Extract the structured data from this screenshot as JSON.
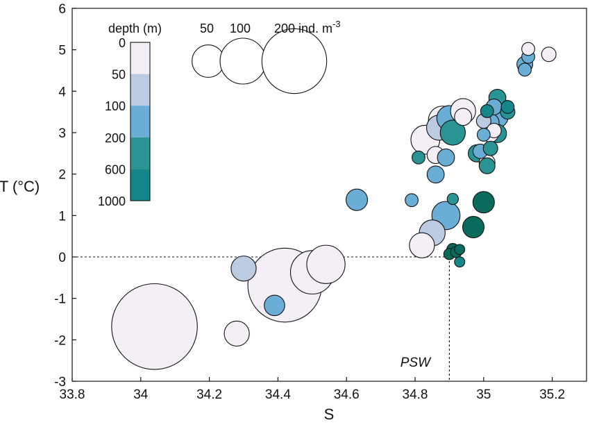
{
  "chart_data": {
    "type": "scatter",
    "title": "",
    "xlabel": "S",
    "ylabel": "T (°C)",
    "xlim": [
      33.8,
      35.3
    ],
    "ylim": [
      -3,
      6
    ],
    "x_ticks": [
      33.8,
      34,
      34.2,
      34.4,
      34.6,
      34.8,
      35,
      35.2
    ],
    "x_tick_labels": [
      "33.8",
      "34",
      "34.2",
      "34.4",
      "34.6",
      "34.8",
      "35",
      "35.2"
    ],
    "y_ticks": [
      -3,
      -2,
      -1,
      0,
      1,
      2,
      3,
      4,
      5,
      6
    ],
    "y_tick_labels": [
      "-3",
      "-2",
      "-1",
      "0",
      "1",
      "2",
      "3",
      "4",
      "5",
      "6"
    ],
    "grid": false,
    "depth_colorbar": {
      "title": "depth (m)",
      "levels": [
        "0",
        "50",
        "100",
        "200",
        "600",
        "1000"
      ],
      "colors": [
        "#f4eff6",
        "#bccbe2",
        "#6aaed6",
        "#2a9494",
        "#15868a",
        "#0a6b5c"
      ]
    },
    "size_legend": {
      "labels": [
        "50",
        "100",
        "200 ind. m"
      ],
      "label_superscript": "-3",
      "values": [
        50,
        100,
        200
      ]
    },
    "reference_point": {
      "label": "PSW",
      "x": 34.9,
      "y": 0
    },
    "points": [
      {
        "x": 34.04,
        "y": -1.68,
        "abundance": 350,
        "depth_class": 0
      },
      {
        "x": 34.28,
        "y": -1.85,
        "abundance": 30,
        "depth_class": 0
      },
      {
        "x": 34.3,
        "y": -0.28,
        "abundance": 30,
        "depth_class": 1
      },
      {
        "x": 34.39,
        "y": -1.17,
        "abundance": 20,
        "depth_class": 2
      },
      {
        "x": 34.42,
        "y": -0.68,
        "abundance": 260,
        "depth_class": 0
      },
      {
        "x": 34.5,
        "y": -0.37,
        "abundance": 90,
        "depth_class": 0
      },
      {
        "x": 34.54,
        "y": -0.18,
        "abundance": 70,
        "depth_class": 0
      },
      {
        "x": 34.63,
        "y": 1.38,
        "abundance": 22,
        "depth_class": 2
      },
      {
        "x": 34.79,
        "y": 1.37,
        "abundance": 8,
        "depth_class": 2
      },
      {
        "x": 34.82,
        "y": 0.28,
        "abundance": 30,
        "depth_class": 0
      },
      {
        "x": 34.85,
        "y": 0.58,
        "abundance": 32,
        "depth_class": 1
      },
      {
        "x": 34.83,
        "y": 2.83,
        "abundance": 40,
        "depth_class": 0
      },
      {
        "x": 34.86,
        "y": 2.46,
        "abundance": 14,
        "depth_class": 0
      },
      {
        "x": 34.86,
        "y": 1.99,
        "abundance": 14,
        "depth_class": 2
      },
      {
        "x": 34.81,
        "y": 2.4,
        "abundance": 8,
        "depth_class": 3
      },
      {
        "x": 34.87,
        "y": 3.12,
        "abundance": 30,
        "depth_class": 1
      },
      {
        "x": 34.88,
        "y": 3.3,
        "abundance": 38,
        "depth_class": 0
      },
      {
        "x": 34.89,
        "y": 2.4,
        "abundance": 14,
        "depth_class": 2
      },
      {
        "x": 34.89,
        "y": 1.0,
        "abundance": 38,
        "depth_class": 2
      },
      {
        "x": 34.9,
        "y": 3.35,
        "abundance": 30,
        "depth_class": 2
      },
      {
        "x": 34.91,
        "y": 3.0,
        "abundance": 30,
        "depth_class": 3
      },
      {
        "x": 34.91,
        "y": 1.4,
        "abundance": 6,
        "depth_class": 3
      },
      {
        "x": 34.94,
        "y": 3.52,
        "abundance": 30,
        "depth_class": 0
      },
      {
        "x": 34.94,
        "y": 3.38,
        "abundance": 14,
        "depth_class": 0
      },
      {
        "x": 34.9,
        "y": 0.07,
        "abundance": 6,
        "depth_class": 5
      },
      {
        "x": 34.91,
        "y": 0.18,
        "abundance": 7,
        "depth_class": 5
      },
      {
        "x": 34.92,
        "y": 0.12,
        "abundance": 6,
        "depth_class": 5
      },
      {
        "x": 34.93,
        "y": 0.18,
        "abundance": 5,
        "depth_class": 5
      },
      {
        "x": 34.93,
        "y": -0.12,
        "abundance": 5,
        "depth_class": 4
      },
      {
        "x": 34.97,
        "y": 0.72,
        "abundance": 22,
        "depth_class": 5
      },
      {
        "x": 34.98,
        "y": 2.5,
        "abundance": 14,
        "depth_class": 3
      },
      {
        "x": 34.99,
        "y": 2.55,
        "abundance": 10,
        "depth_class": 2
      },
      {
        "x": 35.0,
        "y": 1.32,
        "abundance": 22,
        "depth_class": 5
      },
      {
        "x": 35.0,
        "y": 3.28,
        "abundance": 10,
        "depth_class": 1
      },
      {
        "x": 35.0,
        "y": 2.95,
        "abundance": 8,
        "depth_class": 2
      },
      {
        "x": 35.01,
        "y": 3.52,
        "abundance": 8,
        "depth_class": 4
      },
      {
        "x": 35.01,
        "y": 2.28,
        "abundance": 12,
        "depth_class": 0
      },
      {
        "x": 35.01,
        "y": 2.2,
        "abundance": 12,
        "depth_class": 3
      },
      {
        "x": 35.02,
        "y": 3.25,
        "abundance": 14,
        "depth_class": 2
      },
      {
        "x": 35.02,
        "y": 2.96,
        "abundance": 12,
        "depth_class": 0
      },
      {
        "x": 35.02,
        "y": 2.62,
        "abundance": 10,
        "depth_class": 3
      },
      {
        "x": 35.03,
        "y": 3.62,
        "abundance": 12,
        "depth_class": 2
      },
      {
        "x": 35.03,
        "y": 3.05,
        "abundance": 10,
        "depth_class": 0
      },
      {
        "x": 35.04,
        "y": 3.84,
        "abundance": 14,
        "depth_class": 3
      },
      {
        "x": 35.04,
        "y": 3.38,
        "abundance": 22,
        "depth_class": 2
      },
      {
        "x": 35.04,
        "y": 2.98,
        "abundance": 16,
        "depth_class": 3
      },
      {
        "x": 35.07,
        "y": 3.5,
        "abundance": 10,
        "depth_class": 3
      },
      {
        "x": 35.07,
        "y": 3.62,
        "abundance": 8,
        "depth_class": 4
      },
      {
        "x": 35.12,
        "y": 4.52,
        "abundance": 8,
        "depth_class": 2
      },
      {
        "x": 35.12,
        "y": 4.65,
        "abundance": 12,
        "depth_class": 2
      },
      {
        "x": 35.13,
        "y": 4.83,
        "abundance": 8,
        "depth_class": 2
      },
      {
        "x": 35.13,
        "y": 5.02,
        "abundance": 8,
        "depth_class": 0
      },
      {
        "x": 35.19,
        "y": 4.89,
        "abundance": 10,
        "depth_class": 0
      }
    ]
  }
}
